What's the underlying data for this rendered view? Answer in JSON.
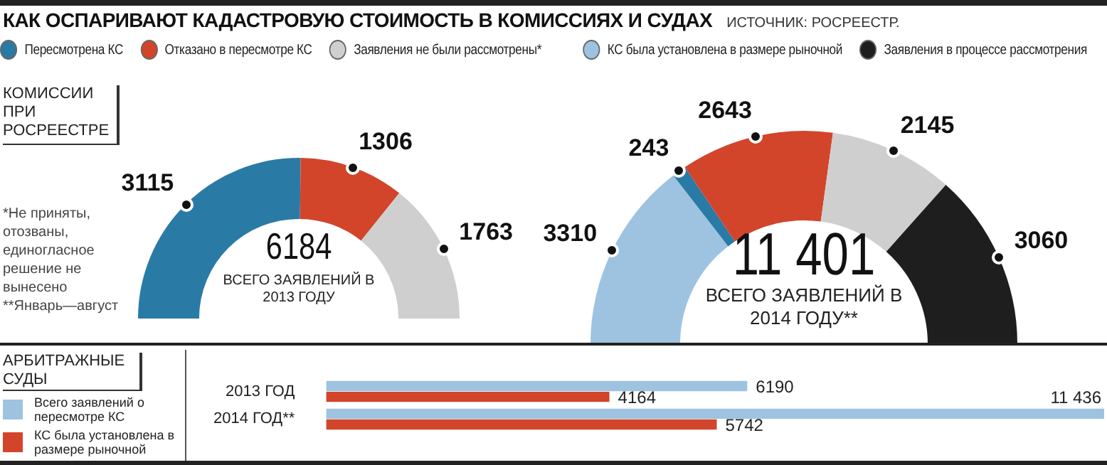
{
  "chart_data": [
    {
      "type": "donut",
      "title": "КАК ОСПАРИВАЮТ КАДАСТРОВУЮ СТОИМОСТЬ В КОМИССИЯХ И СУДАХ",
      "subtitle": "КОМИССИИ ПРИ РОСРЕЕСТРЕ",
      "categories": [
        "Пересмотрена КС",
        "Отказано в пересмотре КС",
        "Заявления не были рассмотрены*"
      ],
      "values": [
        3115,
        1306,
        1763
      ],
      "colors": [
        "#2a7aa6",
        "#d2452b",
        "#cfcfcf"
      ],
      "data_labels": true,
      "legend": "top",
      "annotations": [
        "ИСТОЧНИК: РОСРЕЕСТР.",
        "*Не приняты, отозваны, единогласное решение не вынесено",
        "**Январь—август",
        "6184",
        "ВСЕГО ЗАЯВЛЕНИЙ В 2013 ГОДУ"
      ]
    },
    {
      "type": "donut",
      "categories": [
        "КС была установлена в размере рыночной",
        null,
        null,
        null,
        "Заявления в процессе рассмотрения"
      ],
      "values": [
        3310,
        243,
        2643,
        2145,
        3060
      ],
      "colors": [
        "#9dc3e0",
        "#2a7aa6",
        "#d2452b",
        "#cfcfcf",
        "#1e1e1e"
      ],
      "data_labels": true,
      "legend": "top",
      "annotations": [
        "11 401",
        "ВСЕГО ЗАЯВЛЕНИЙ В 2014 ГОДУ**"
      ]
    },
    {
      "type": "bar",
      "orientation": "horizontal",
      "title": "АРБИТРАЖНЫЕ СУДЫ",
      "categories": [
        "2013 ГОД",
        "2014 ГОД**"
      ],
      "series": [
        {
          "name": "Всего заявлений о пересмотре КС",
          "color": "#9dc3e0",
          "values": [
            6190,
            11436
          ],
          "value_labels": [
            "6190",
            "11 436"
          ]
        },
        {
          "name": "КС была установлена в размере рыночной",
          "color": "#d2452b",
          "values": [
            4164,
            5742
          ],
          "value_labels": [
            "4164",
            "5742"
          ]
        }
      ],
      "legend": "left",
      "tick_labels": "y"
    }
  ]
}
